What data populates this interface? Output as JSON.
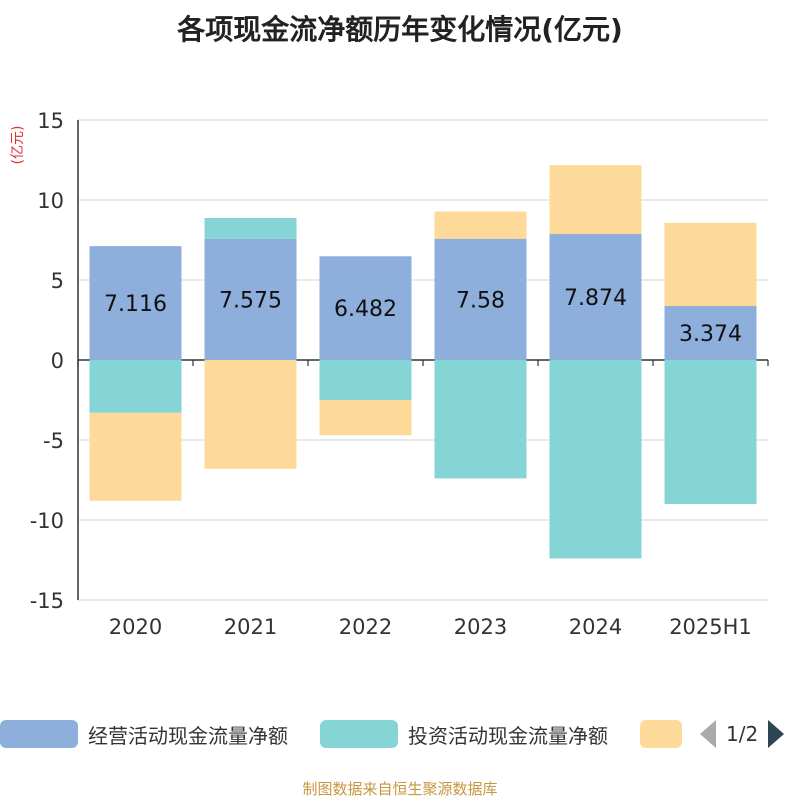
{
  "chart_data": {
    "type": "bar",
    "stacked": true,
    "title": "各项现金流净额历年变化情况(亿元)",
    "ylabel": "(亿元)",
    "ylim": [
      -15,
      15
    ],
    "yticks": [
      15,
      10,
      5,
      0,
      -5,
      -10,
      -15
    ],
    "grid": true,
    "categories": [
      "2020",
      "2021",
      "2022",
      "2023",
      "2024",
      "2025H1"
    ],
    "series": [
      {
        "name": "经营活动现金流量净额",
        "color": "#8eaedb",
        "values": [
          7.116,
          7.575,
          6.482,
          7.58,
          7.874,
          3.374
        ],
        "labels": [
          "7.116",
          "7.575",
          "6.482",
          "7.58",
          "7.874",
          "3.374"
        ]
      },
      {
        "name": "投资活动现金流量净额",
        "color": "#86d5d6",
        "values": [
          -3.3,
          1.3,
          -2.5,
          -7.4,
          -12.4,
          -9.0
        ]
      },
      {
        "name": "",
        "color": "#fdd99a",
        "values": [
          -5.5,
          -6.8,
          -2.2,
          1.7,
          4.3,
          5.2
        ]
      }
    ],
    "legend_position": "bottom"
  },
  "legend": {
    "page": "1/2"
  },
  "footer": {
    "source": "制图数据来自恒生聚源数据库"
  }
}
